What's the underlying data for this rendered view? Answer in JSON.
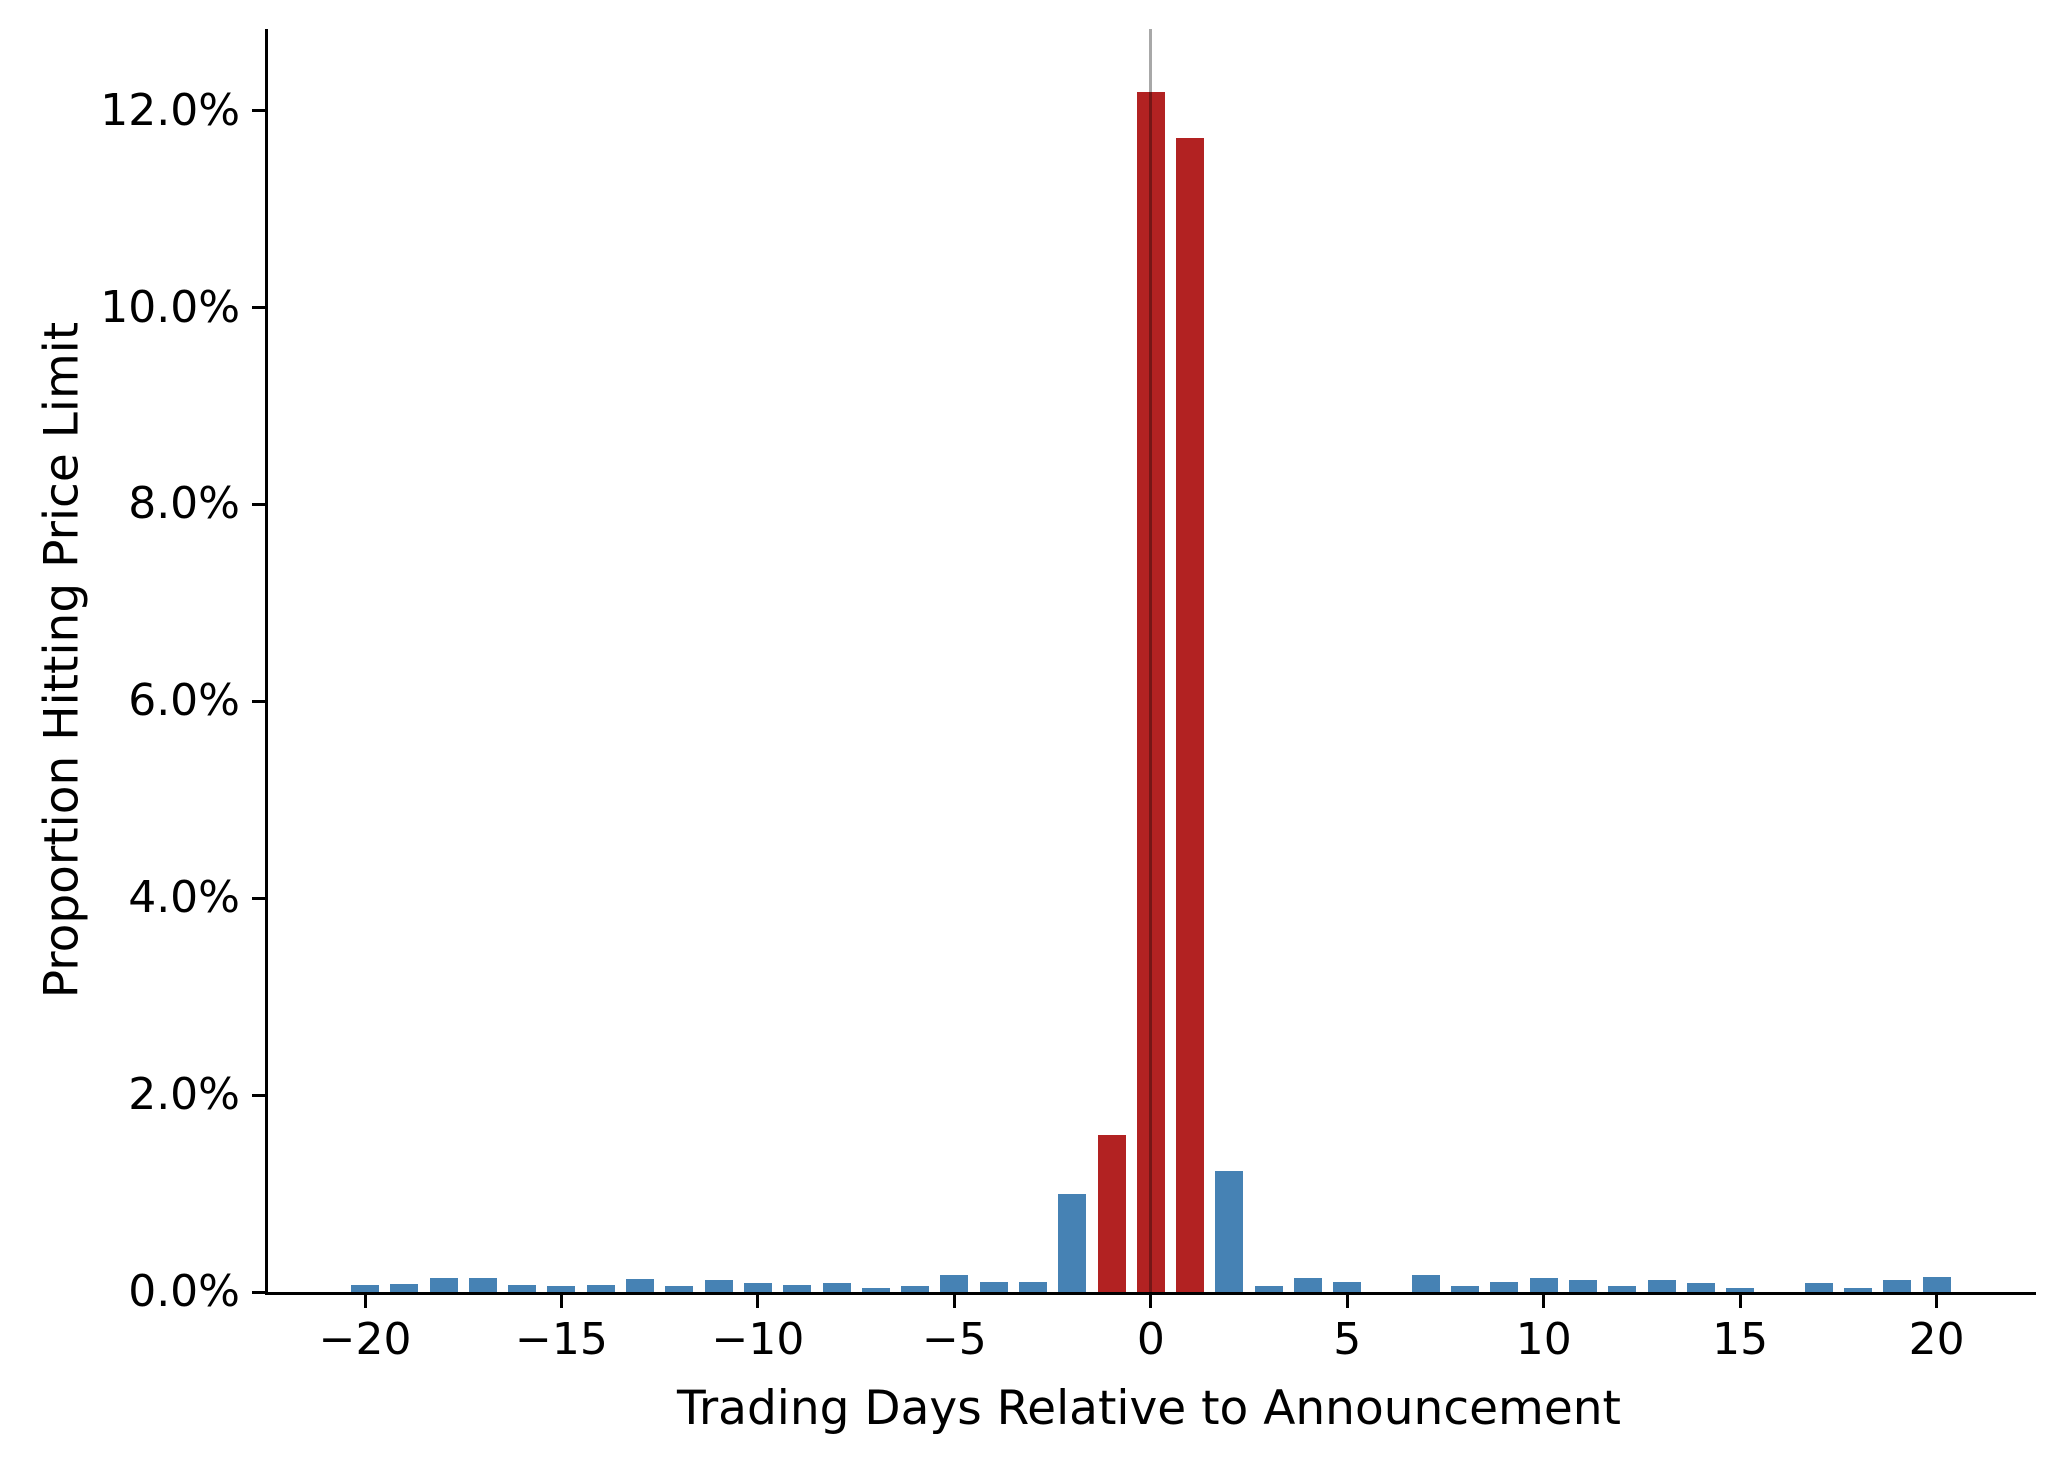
{
  "chart_data": {
    "type": "bar",
    "xlabel": "Trading Days Relative to Announcement",
    "ylabel": "Proportion Hitting Price Limit",
    "x": [
      -20,
      -19,
      -18,
      -17,
      -16,
      -15,
      -14,
      -13,
      -12,
      -11,
      -10,
      -9,
      -8,
      -7,
      -6,
      -5,
      -4,
      -3,
      -2,
      -1,
      0,
      1,
      2,
      3,
      4,
      5,
      6,
      7,
      8,
      9,
      10,
      11,
      12,
      13,
      14,
      15,
      16,
      17,
      18,
      19,
      20
    ],
    "values": [
      0.07,
      0.08,
      0.14,
      0.14,
      0.07,
      0.06,
      0.07,
      0.13,
      0.06,
      0.12,
      0.09,
      0.07,
      0.09,
      0.04,
      0.06,
      0.17,
      0.1,
      0.1,
      1.0,
      1.6,
      12.19,
      11.72,
      1.23,
      0.06,
      0.14,
      0.1,
      0.0,
      0.17,
      0.06,
      0.1,
      0.14,
      0.12,
      0.06,
      0.12,
      0.09,
      0.04,
      0.0,
      0.09,
      0.04,
      0.12,
      0.15
    ],
    "units": "percent",
    "highlight_days": [
      -1,
      0,
      1
    ],
    "bar_color_default": "#4682B4",
    "bar_color_highlight": "#B22222",
    "vline_x": 0,
    "vline_color_rgba": "rgba(0,0,0,0.34)",
    "x_ticks": [
      {
        "value": -20,
        "label": "−20"
      },
      {
        "value": -15,
        "label": "−15"
      },
      {
        "value": -10,
        "label": "−10"
      },
      {
        "value": -5,
        "label": "−5"
      },
      {
        "value": 0,
        "label": "0"
      },
      {
        "value": 5,
        "label": "5"
      },
      {
        "value": 10,
        "label": "10"
      },
      {
        "value": 15,
        "label": "15"
      },
      {
        "value": 20,
        "label": "20"
      }
    ],
    "y_ticks": [
      {
        "value": 0,
        "label": "0.0%"
      },
      {
        "value": 2,
        "label": "2.0%"
      },
      {
        "value": 4,
        "label": "4.0%"
      },
      {
        "value": 6,
        "label": "6.0%"
      },
      {
        "value": 8,
        "label": "8.0%"
      },
      {
        "value": 10,
        "label": "10.0%"
      },
      {
        "value": 12,
        "label": "12.0%"
      }
    ],
    "xlim": [
      -22.47,
      22.53
    ],
    "ylim": [
      0,
      12.83
    ],
    "grid": false,
    "legend": "none",
    "title": ""
  }
}
